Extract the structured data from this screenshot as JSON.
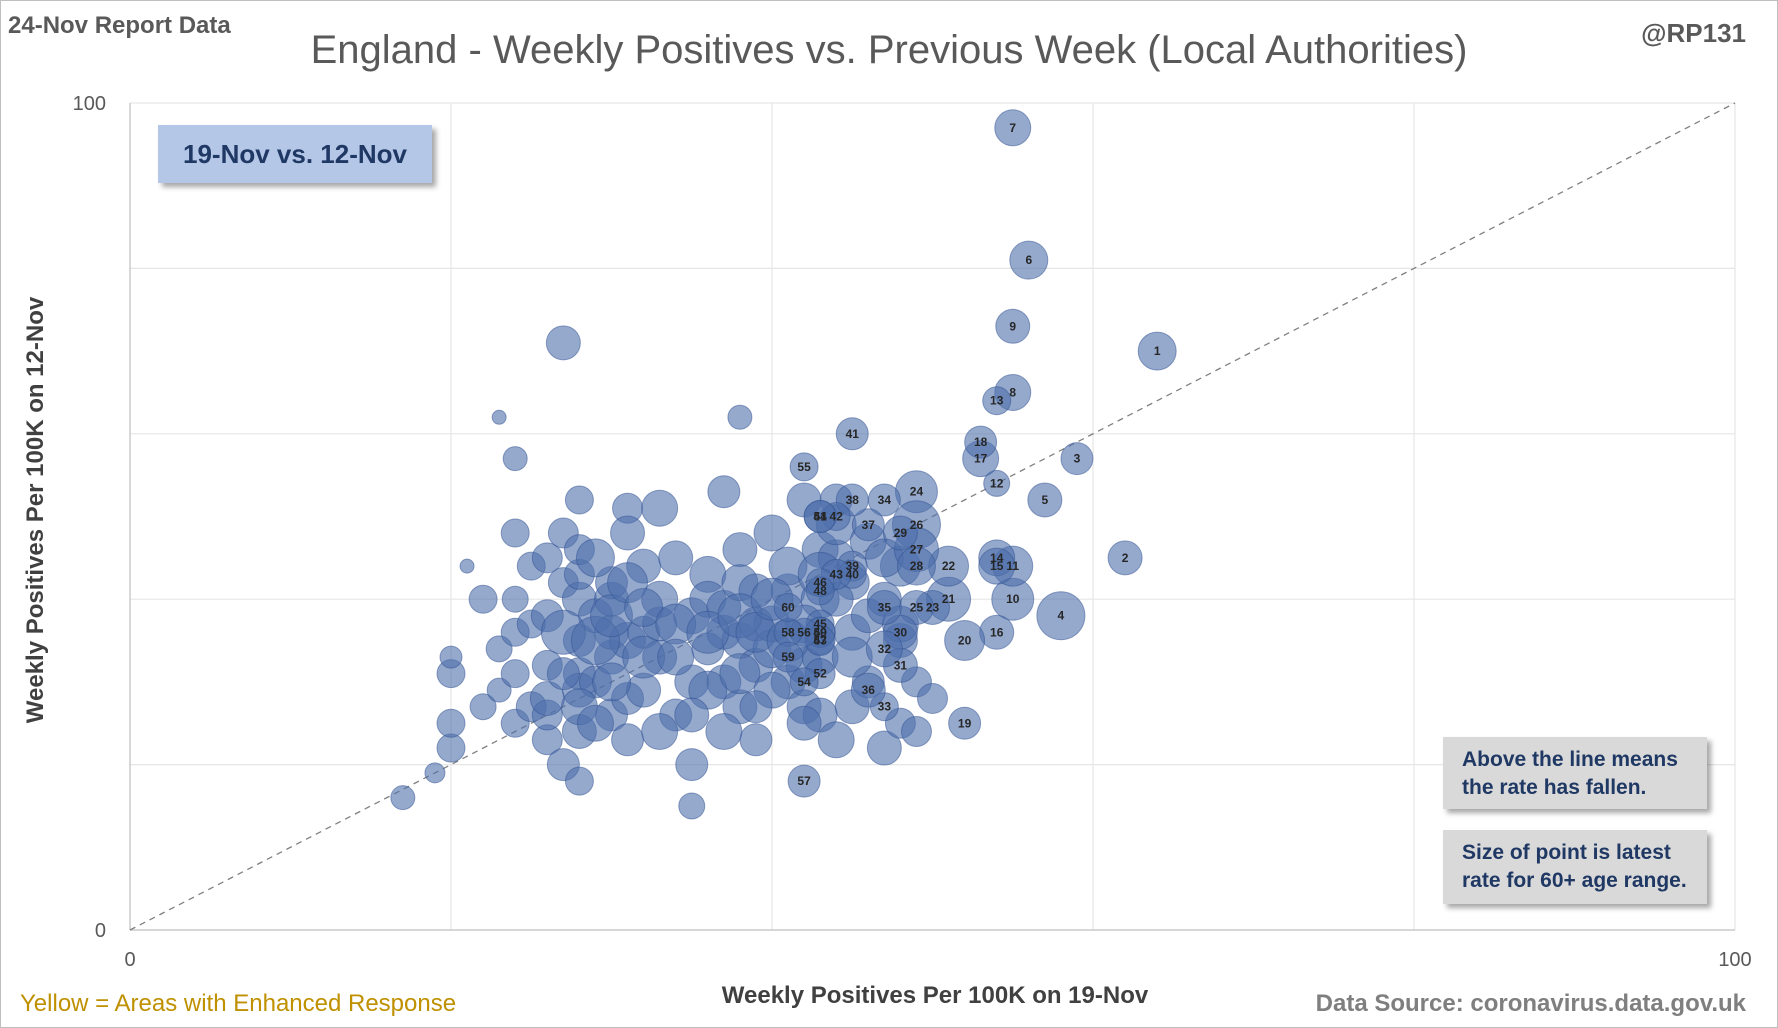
{
  "header": {
    "report_label": "24-Nov Report Data",
    "author": "@RP131",
    "title": "England - Weekly Positives vs. Previous Week (Local Authorities)"
  },
  "period_label": "19-Nov vs. 12-Nov",
  "notes": {
    "line_meaning": [
      "Above the line means",
      "the rate has fallen."
    ],
    "point_size": [
      "Size of point is latest",
      "rate for 60+ age range."
    ]
  },
  "footer": {
    "legend_note": "Yellow = Areas with Enhanced  Response",
    "source": "Data Source: coronavirus.data.gov.uk"
  },
  "colors": {
    "bubble": "#4f6fac",
    "bubble_edge": "#2f4f8f",
    "diagonal": "#808080",
    "grid": "#e6e6e6"
  },
  "chart_data": {
    "type": "scatter",
    "xlabel": "Weekly Positives Per 100K on 19-Nov",
    "ylabel": "Weekly Positives Per 100K on 12-Nov",
    "xlim": [
      0,
      100
    ],
    "ylim": [
      0,
      100
    ],
    "x_tick_labels": [
      {
        "value": 0,
        "label": "0"
      },
      {
        "value": 100,
        "label": "100"
      }
    ],
    "y_tick_labels": [
      {
        "value": 0,
        "label": "0"
      },
      {
        "value": 100,
        "label": "100"
      }
    ],
    "gridlines_x": [
      20,
      40,
      60,
      80
    ],
    "gridlines_y": [
      20,
      40,
      60,
      80
    ],
    "reference_line": {
      "from": [
        0,
        0
      ],
      "to": [
        100,
        100
      ],
      "style": "dashed"
    },
    "labeled_points": [
      {
        "label": "1",
        "x": 64,
        "y": 70,
        "size": 19
      },
      {
        "label": "2",
        "x": 62,
        "y": 45,
        "size": 17
      },
      {
        "label": "3",
        "x": 59,
        "y": 57,
        "size": 16
      },
      {
        "label": "4",
        "x": 58,
        "y": 38,
        "size": 24
      },
      {
        "label": "5",
        "x": 57,
        "y": 52,
        "size": 17
      },
      {
        "label": "6",
        "x": 56,
        "y": 81,
        "size": 19
      },
      {
        "label": "7",
        "x": 55,
        "y": 97,
        "size": 18
      },
      {
        "label": "8",
        "x": 55,
        "y": 65,
        "size": 18
      },
      {
        "label": "9",
        "x": 55,
        "y": 73,
        "size": 17
      },
      {
        "label": "10",
        "x": 55,
        "y": 40,
        "size": 21
      },
      {
        "label": "11",
        "x": 55,
        "y": 44,
        "size": 20
      },
      {
        "label": "12",
        "x": 54,
        "y": 54,
        "size": 13
      },
      {
        "label": "13",
        "x": 54,
        "y": 64,
        "size": 14
      },
      {
        "label": "14",
        "x": 54,
        "y": 45,
        "size": 18
      },
      {
        "label": "15",
        "x": 54,
        "y": 44,
        "size": 18
      },
      {
        "label": "16",
        "x": 54,
        "y": 36,
        "size": 17
      },
      {
        "label": "17",
        "x": 53,
        "y": 57,
        "size": 18
      },
      {
        "label": "18",
        "x": 53,
        "y": 59,
        "size": 16
      },
      {
        "label": "19",
        "x": 52,
        "y": 25,
        "size": 16
      },
      {
        "label": "20",
        "x": 52,
        "y": 35,
        "size": 20
      },
      {
        "label": "21",
        "x": 51,
        "y": 40,
        "size": 22
      },
      {
        "label": "22",
        "x": 51,
        "y": 44,
        "size": 20
      },
      {
        "label": "23",
        "x": 50,
        "y": 39,
        "size": 17
      },
      {
        "label": "24",
        "x": 49,
        "y": 53,
        "size": 21
      },
      {
        "label": "25",
        "x": 49,
        "y": 39,
        "size": 17
      },
      {
        "label": "26",
        "x": 49,
        "y": 49,
        "size": 24
      },
      {
        "label": "27",
        "x": 49,
        "y": 46,
        "size": 22
      },
      {
        "label": "28",
        "x": 49,
        "y": 44,
        "size": 19
      },
      {
        "label": "29",
        "x": 48,
        "y": 48,
        "size": 17
      },
      {
        "label": "30",
        "x": 48,
        "y": 36,
        "size": 17
      },
      {
        "label": "31",
        "x": 48,
        "y": 32,
        "size": 17
      },
      {
        "label": "32",
        "x": 47,
        "y": 34,
        "size": 18
      },
      {
        "label": "33",
        "x": 47,
        "y": 27,
        "size": 14
      },
      {
        "label": "34",
        "x": 47,
        "y": 52,
        "size": 16
      },
      {
        "label": "35",
        "x": 47,
        "y": 39,
        "size": 17
      },
      {
        "label": "36",
        "x": 46,
        "y": 29,
        "size": 17
      },
      {
        "label": "37",
        "x": 46,
        "y": 49,
        "size": 16
      },
      {
        "label": "38",
        "x": 45,
        "y": 52,
        "size": 16
      },
      {
        "label": "39",
        "x": 45,
        "y": 44,
        "size": 15
      },
      {
        "label": "40",
        "x": 45,
        "y": 43,
        "size": 14
      },
      {
        "label": "41",
        "x": 45,
        "y": 60,
        "size": 16
      },
      {
        "label": "42",
        "x": 44,
        "y": 50,
        "size": 14
      },
      {
        "label": "43",
        "x": 44,
        "y": 43,
        "size": 15
      },
      {
        "label": "44",
        "x": 43,
        "y": 50,
        "size": 16
      },
      {
        "label": "45",
        "x": 43,
        "y": 37,
        "size": 14
      },
      {
        "label": "46",
        "x": 43,
        "y": 42,
        "size": 14
      },
      {
        "label": "47",
        "x": 43,
        "y": 35,
        "size": 14
      },
      {
        "label": "48",
        "x": 43,
        "y": 41,
        "size": 14
      },
      {
        "label": "49",
        "x": 43,
        "y": 36,
        "size": 15
      },
      {
        "label": "50",
        "x": 43,
        "y": 36,
        "size": 15
      },
      {
        "label": "51",
        "x": 43,
        "y": 50,
        "size": 16
      },
      {
        "label": "52",
        "x": 43,
        "y": 31,
        "size": 15
      },
      {
        "label": "53",
        "x": 43,
        "y": 35,
        "size": 15
      },
      {
        "label": "54",
        "x": 42,
        "y": 30,
        "size": 14
      },
      {
        "label": "55",
        "x": 42,
        "y": 56,
        "size": 14
      },
      {
        "label": "56",
        "x": 42,
        "y": 36,
        "size": 14
      },
      {
        "label": "57",
        "x": 42,
        "y": 18,
        "size": 16
      },
      {
        "label": "58",
        "x": 41,
        "y": 36,
        "size": 14
      },
      {
        "label": "59",
        "x": 41,
        "y": 33,
        "size": 15
      },
      {
        "label": "60",
        "x": 41,
        "y": 39,
        "size": 14
      }
    ],
    "other_points": [
      [
        17,
        16,
        12
      ],
      [
        19,
        19,
        10
      ],
      [
        20,
        22,
        14
      ],
      [
        20,
        25,
        14
      ],
      [
        20,
        31,
        14
      ],
      [
        20,
        33,
        11
      ],
      [
        21,
        44,
        7
      ],
      [
        22,
        27,
        13
      ],
      [
        22,
        40,
        14
      ],
      [
        23,
        29,
        12
      ],
      [
        23,
        34,
        13
      ],
      [
        24,
        25,
        14
      ],
      [
        24,
        31,
        14
      ],
      [
        24,
        36,
        14
      ],
      [
        24,
        40,
        13
      ],
      [
        24,
        57,
        12
      ],
      [
        25,
        27,
        15
      ],
      [
        25,
        37,
        14
      ],
      [
        23,
        62,
        7
      ],
      [
        26,
        23,
        15
      ],
      [
        26,
        26,
        15
      ],
      [
        26,
        32,
        15
      ],
      [
        26,
        38,
        16
      ],
      [
        24,
        48,
        14
      ],
      [
        25,
        44,
        14
      ],
      [
        26,
        45,
        15
      ],
      [
        27,
        20,
        16
      ],
      [
        27,
        42,
        15
      ],
      [
        27,
        48,
        15
      ],
      [
        27,
        71,
        17
      ],
      [
        28,
        18,
        14
      ],
      [
        28,
        31,
        16
      ],
      [
        28,
        52,
        14
      ],
      [
        28,
        24,
        17
      ],
      [
        28,
        29,
        17
      ],
      [
        28,
        35,
        16
      ],
      [
        28,
        40,
        17
      ],
      [
        28,
        43,
        15
      ],
      [
        28,
        46,
        15
      ],
      [
        29,
        30,
        16
      ],
      [
        29,
        38,
        17
      ],
      [
        30,
        33,
        17
      ],
      [
        30,
        26,
        16
      ],
      [
        30,
        36,
        17
      ],
      [
        30,
        40,
        17
      ],
      [
        30,
        42,
        16
      ],
      [
        31,
        28,
        16
      ],
      [
        31,
        35,
        18
      ],
      [
        31,
        51,
        15
      ],
      [
        32,
        29,
        17
      ],
      [
        32,
        44,
        17
      ],
      [
        32,
        36,
        16
      ],
      [
        33,
        37,
        17
      ],
      [
        33,
        40,
        18
      ],
      [
        33,
        33,
        17
      ],
      [
        34,
        26,
        16
      ],
      [
        34,
        45,
        17
      ],
      [
        35,
        20,
        16
      ],
      [
        35,
        30,
        17
      ],
      [
        35,
        38,
        18
      ],
      [
        35,
        15,
        13
      ],
      [
        36,
        34,
        16
      ],
      [
        36,
        43,
        18
      ],
      [
        36,
        40,
        18
      ],
      [
        37,
        30,
        17
      ],
      [
        37,
        36,
        17
      ],
      [
        37,
        39,
        17
      ],
      [
        38,
        27,
        17
      ],
      [
        38,
        35,
        18
      ],
      [
        38,
        46,
        17
      ],
      [
        38,
        42,
        18
      ],
      [
        39,
        23,
        16
      ],
      [
        39,
        32,
        17
      ],
      [
        39,
        37,
        17
      ],
      [
        39,
        41,
        17
      ],
      [
        40,
        48,
        18
      ],
      [
        40,
        34,
        19
      ],
      [
        40,
        37,
        18
      ],
      [
        41,
        30,
        17
      ],
      [
        41,
        41,
        17
      ],
      [
        41,
        44,
        19
      ],
      [
        42,
        32,
        18
      ],
      [
        42,
        52,
        17
      ],
      [
        42,
        27,
        17
      ],
      [
        43,
        26,
        17
      ],
      [
        43,
        40,
        19
      ],
      [
        43,
        46,
        18
      ],
      [
        44,
        23,
        18
      ],
      [
        44,
        45,
        18
      ],
      [
        44,
        52,
        16
      ],
      [
        45,
        27,
        17
      ],
      [
        45,
        36,
        18
      ],
      [
        45,
        42,
        17
      ],
      [
        46,
        38,
        17
      ],
      [
        46,
        30,
        16
      ],
      [
        47,
        22,
        17
      ],
      [
        48,
        25,
        15
      ],
      [
        48,
        44,
        20
      ],
      [
        48,
        35,
        17
      ],
      [
        49,
        24,
        15
      ],
      [
        49,
        30,
        15
      ],
      [
        50,
        28,
        15
      ],
      [
        38,
        62,
        12
      ],
      [
        37,
        53,
        16
      ],
      [
        33,
        51,
        18
      ],
      [
        31,
        48,
        17
      ],
      [
        29,
        45,
        19
      ],
      [
        27,
        36,
        22
      ],
      [
        29,
        35,
        24
      ],
      [
        30,
        38,
        21
      ],
      [
        31,
        42,
        20
      ],
      [
        32,
        39,
        19
      ],
      [
        34,
        37,
        20
      ],
      [
        36,
        36,
        21
      ],
      [
        38,
        38,
        22
      ],
      [
        39,
        36,
        20
      ],
      [
        40,
        40,
        21
      ],
      [
        42,
        37,
        19
      ],
      [
        43,
        33,
        18
      ],
      [
        44,
        40,
        17
      ],
      [
        32,
        33,
        21
      ],
      [
        34,
        33,
        18
      ],
      [
        36,
        29,
        19
      ],
      [
        38,
        31,
        20
      ],
      [
        40,
        29,
        18
      ],
      [
        42,
        25,
        17
      ],
      [
        30,
        30,
        19
      ],
      [
        28,
        27,
        18
      ],
      [
        26,
        28,
        17
      ],
      [
        27,
        31,
        16
      ],
      [
        29,
        25,
        18
      ],
      [
        31,
        23,
        16
      ],
      [
        33,
        24,
        18
      ],
      [
        35,
        26,
        17
      ],
      [
        37,
        24,
        18
      ],
      [
        39,
        27,
        16
      ],
      [
        41,
        35,
        21
      ],
      [
        43,
        43,
        22
      ],
      [
        44,
        49,
        20
      ],
      [
        46,
        47,
        18
      ],
      [
        47,
        45,
        19
      ],
      [
        45,
        33,
        20
      ],
      [
        47,
        40,
        17
      ],
      [
        48,
        37,
        18
      ]
    ]
  }
}
